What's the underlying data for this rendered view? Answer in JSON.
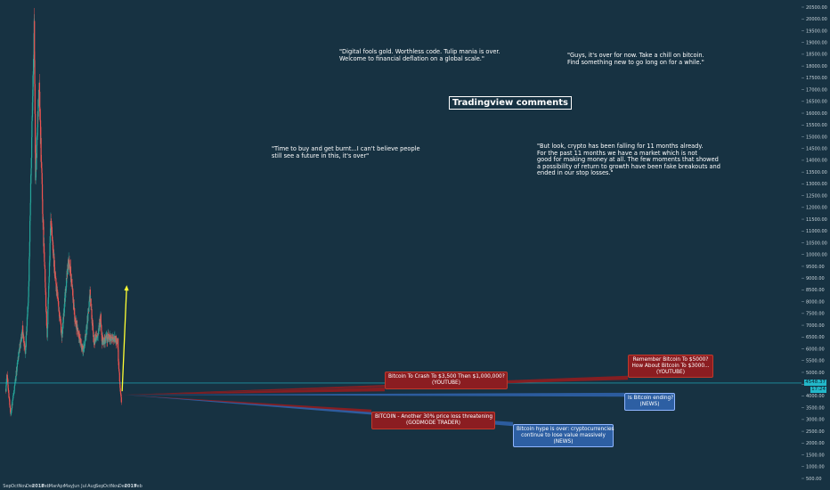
{
  "title_label": "Tradingview comments",
  "comments": {
    "c1": "\"Digital fools gold. Worthless code. Tulip mania is over.\nWelcome to financial deflation on a global scale.\"",
    "c2": "\"Guys, it's over for now. Take a chill on bitcoin.\nFind something new to go long on for a while.\"",
    "c3": "\"Time to buy and get burnt...I can't believe people\nstill see a future in this, it's over\"",
    "c4": "\"But look, crypto has been falling for 11 months already.\nFor the past 11 months we have a market which is not\ngood for making money at all. The few moments that showed\na possibility of return to growth have been fake breakouts and\nended in our stop losses.\""
  },
  "headlines": {
    "b1": "Bitcoin To Crash To $3,500 Then $1,000,000?\n(YOUTUBE)",
    "b2": "BITCOIN - Another 30% price loss threatening\n(GODMODE TRADER)",
    "b3": "Remember Bitcoin To $5000?\nHow About Bitcoin To $3000...\n(YOUTUBE)",
    "b4": "Is Bitcoin ending?\n(NEWS)",
    "b5": "Bitcoin hype is over: cryptocurrencies\ncontinue to lose value massively\n(NEWS)"
  },
  "price_tags": {
    "current": "4548.37",
    "countdown": "17:24"
  },
  "colors": {
    "background": "#173242",
    "up_candle": "#26a69a",
    "down_candle": "#ef5350",
    "current_price_line": "#22b7c9",
    "arrow": "#ffff33",
    "red_box": "#8b1d21",
    "blue_box": "#2d5fa3"
  },
  "chart_data": {
    "type": "candlestick",
    "x_tick_labels": [
      "Sep",
      "Oct",
      "Nov",
      "Dec",
      "2018",
      "Feb",
      "Mar",
      "Apr",
      "May",
      "Jun",
      "Jul",
      "Aug",
      "Sep",
      "Oct",
      "Nov",
      "Dec",
      "2019",
      "Feb"
    ],
    "y_tick_labels": [
      "500.00",
      "1000.00",
      "1500.00",
      "2000.00",
      "2500.00",
      "3000.00",
      "3500.00",
      "4000.00",
      "4500.00",
      "5000.00",
      "5500.00",
      "6000.00",
      "6500.00",
      "7000.00",
      "7500.00",
      "8000.00",
      "8500.00",
      "9000.00",
      "9500.00",
      "10000.00",
      "10500.00",
      "11000.00",
      "11500.00",
      "12000.00",
      "12500.00",
      "13000.00",
      "13500.00",
      "14000.00",
      "14500.00",
      "15000.00",
      "15500.00",
      "16000.00",
      "16500.00",
      "17000.00",
      "17500.00",
      "18000.00",
      "18500.00",
      "19000.00",
      "19500.00",
      "20000.00",
      "20500.00"
    ],
    "ylim": [
      500,
      20500
    ],
    "current_price": 4548.37,
    "price_path": [
      {
        "date": "2017-08-27",
        "price": 4300
      },
      {
        "date": "2017-09-01",
        "price": 4900
      },
      {
        "date": "2017-09-15",
        "price": 3200
      },
      {
        "date": "2017-10-01",
        "price": 4400
      },
      {
        "date": "2017-10-15",
        "price": 5700
      },
      {
        "date": "2017-11-01",
        "price": 6800
      },
      {
        "date": "2017-11-12",
        "price": 5800
      },
      {
        "date": "2017-11-25",
        "price": 8500
      },
      {
        "date": "2017-12-07",
        "price": 15000
      },
      {
        "date": "2017-12-17",
        "price": 19500
      },
      {
        "date": "2017-12-22",
        "price": 13500
      },
      {
        "date": "2018-01-06",
        "price": 17100
      },
      {
        "date": "2018-01-20",
        "price": 11500
      },
      {
        "date": "2018-02-06",
        "price": 6500
      },
      {
        "date": "2018-02-20",
        "price": 11300
      },
      {
        "date": "2018-03-10",
        "price": 9000
      },
      {
        "date": "2018-04-01",
        "price": 6900
      },
      {
        "date": "2018-04-06",
        "price": 6600
      },
      {
        "date": "2018-04-25",
        "price": 9200
      },
      {
        "date": "2018-05-05",
        "price": 9800
      },
      {
        "date": "2018-05-25",
        "price": 7400
      },
      {
        "date": "2018-06-12",
        "price": 6500
      },
      {
        "date": "2018-06-28",
        "price": 5900
      },
      {
        "date": "2018-07-10",
        "price": 6700
      },
      {
        "date": "2018-07-25",
        "price": 8300
      },
      {
        "date": "2018-08-10",
        "price": 6300
      },
      {
        "date": "2018-08-25",
        "price": 6700
      },
      {
        "date": "2018-09-05",
        "price": 7300
      },
      {
        "date": "2018-09-10",
        "price": 6300
      },
      {
        "date": "2018-10-10",
        "price": 6500
      },
      {
        "date": "2018-11-01",
        "price": 6400
      },
      {
        "date": "2018-11-12",
        "price": 6300
      },
      {
        "date": "2018-11-14",
        "price": 5600
      },
      {
        "date": "2018-11-20",
        "price": 4500
      },
      {
        "date": "2018-11-24",
        "price": 4000
      },
      {
        "date": "2018-11-26",
        "price": 3800
      },
      {
        "date": "2018-11-27",
        "price": 4548.37
      }
    ],
    "arrow": {
      "from_date": "2018-11-29",
      "from_price": 4200,
      "to_date": "2018-12-17",
      "to_price": 8700
    }
  }
}
